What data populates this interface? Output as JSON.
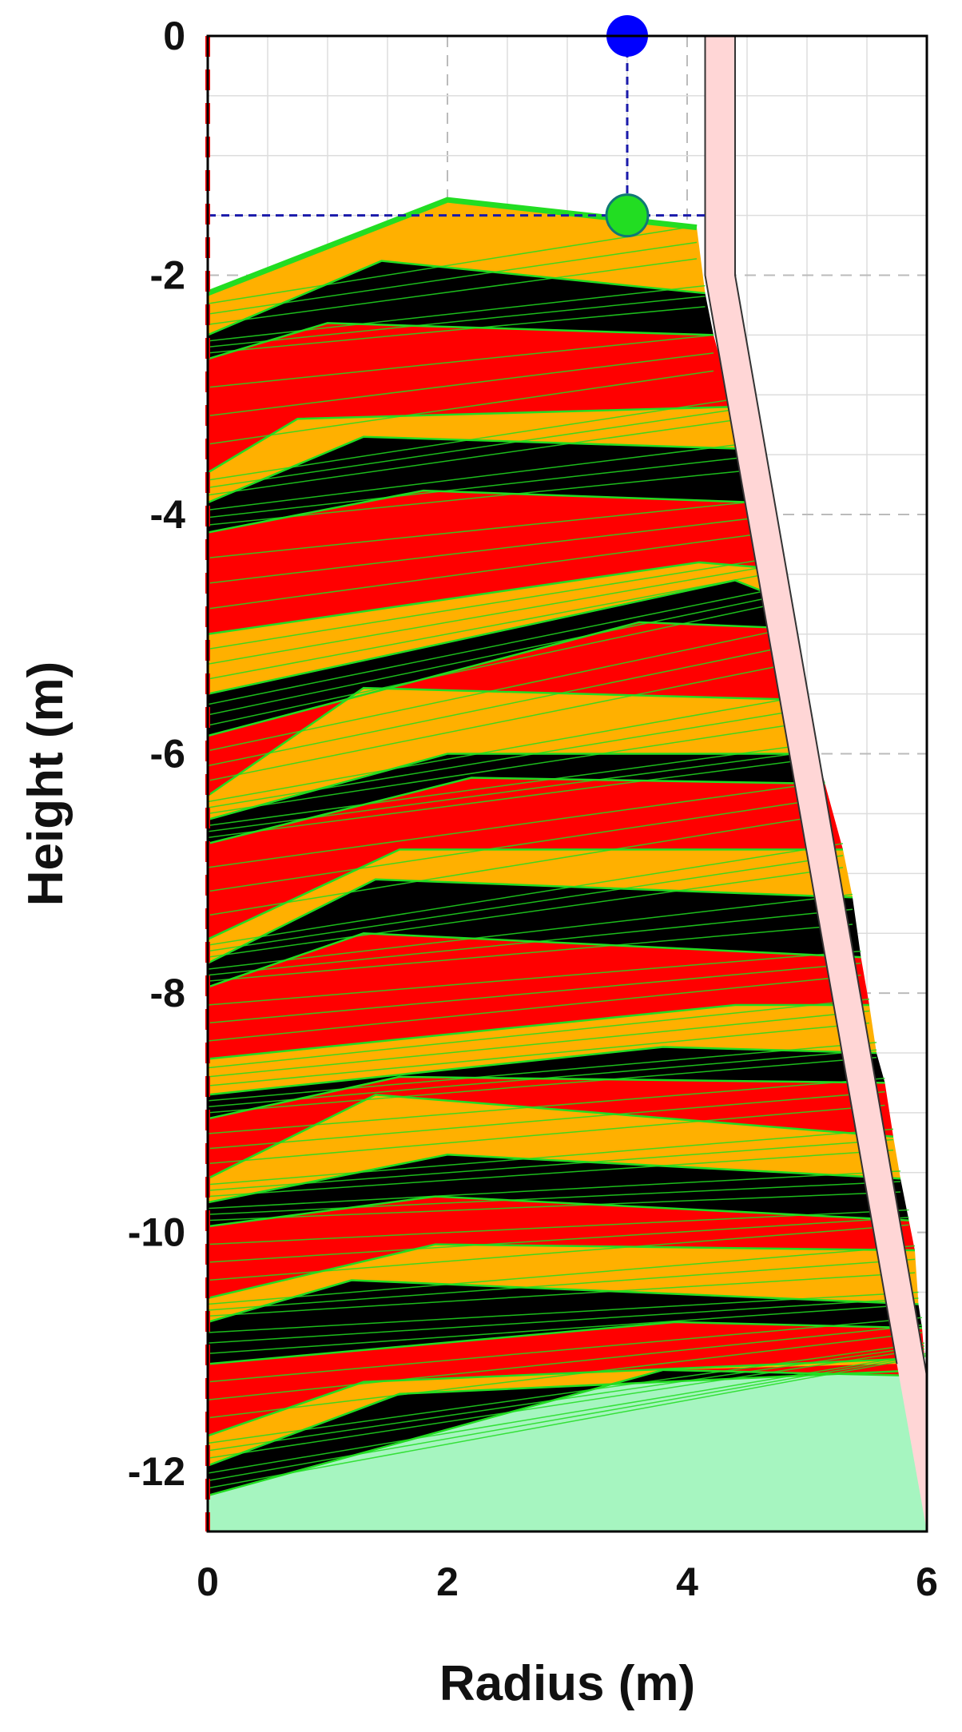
{
  "chart_data": {
    "type": "area",
    "title": "",
    "xlabel": "Radius (m)",
    "ylabel": "Height (m)",
    "xlim": [
      0,
      6
    ],
    "ylim": [
      -12.5,
      0
    ],
    "grid": true,
    "minor_grid": true,
    "x_ticks": [
      0,
      2,
      4,
      6
    ],
    "x_tick_labels": [
      "0",
      "2",
      "4",
      "6"
    ],
    "y_ticks": [
      0,
      -2,
      -4,
      -6,
      -8,
      -10,
      -12
    ],
    "y_tick_labels": [
      "0",
      "-2",
      "-4",
      "-6",
      "-8",
      "-10",
      "-12"
    ],
    "colors": {
      "black_layer": "#000000",
      "red_layer": "#ff0000",
      "orange_layer": "#ffb000",
      "grid_line": "#22dd22",
      "wall": "#ffd6d6",
      "wall_edge": "#333333",
      "bottom_fill": "#a6f5c0",
      "marker_fill": "#0000ff",
      "marker_ring_fill": "#22dd22",
      "guide": "#1a1aaa",
      "centerline": "#ff0000"
    },
    "cycle": [
      "black",
      "red",
      "orange"
    ],
    "layers": [
      {
        "left": -2.15,
        "peak_r": 2.0,
        "peak": -1.37,
        "wallr": 4.08,
        "right": -1.6
      },
      {
        "left": -2.5,
        "peak_r": 1.45,
        "peak": -1.88,
        "wallr": 4.15,
        "right": -2.15
      },
      {
        "left": -2.7,
        "peak_r": 1.0,
        "peak": -2.4,
        "wallr": 4.22,
        "right": -2.5
      },
      {
        "left": -3.65,
        "peak_r": 0.75,
        "peak": -3.2,
        "wallr": 4.38,
        "right": -3.1
      },
      {
        "left": -3.9,
        "peak_r": 1.3,
        "peak": -3.35,
        "wallr": 4.45,
        "right": -3.45
      },
      {
        "left": -4.15,
        "peak_r": 1.8,
        "peak": -3.8,
        "wallr": 4.6,
        "right": -3.9
      },
      {
        "left": -5.0,
        "peak_r": 4.1,
        "peak": -4.4,
        "wallr": 4.72,
        "right": -4.45
      },
      {
        "left": -5.5,
        "peak_r": 4.4,
        "peak": -4.55,
        "wallr": 4.78,
        "right": -4.7
      },
      {
        "left": -5.85,
        "peak_r": 3.6,
        "peak": -4.9,
        "wallr": 4.85,
        "right": -4.95
      },
      {
        "left": -6.35,
        "peak_r": 1.3,
        "peak": -5.45,
        "wallr": 5.0,
        "right": -5.55
      },
      {
        "left": -6.55,
        "peak_r": 2.0,
        "peak": -6.0,
        "wallr": 5.08,
        "right": -6.0
      },
      {
        "left": -6.75,
        "peak_r": 2.2,
        "peak": -6.2,
        "wallr": 5.15,
        "right": -6.25
      },
      {
        "left": -7.55,
        "peak_r": 1.6,
        "peak": -6.8,
        "wallr": 5.3,
        "right": -6.8
      },
      {
        "left": -7.75,
        "peak_r": 1.4,
        "peak": -7.05,
        "wallr": 5.38,
        "right": -7.2
      },
      {
        "left": -7.95,
        "peak_r": 1.3,
        "peak": -7.5,
        "wallr": 5.45,
        "right": -7.7
      },
      {
        "left": -8.55,
        "peak_r": 4.4,
        "peak": -8.1,
        "wallr": 5.52,
        "right": -8.1
      },
      {
        "left": -8.85,
        "peak_r": 3.8,
        "peak": -8.45,
        "wallr": 5.58,
        "right": -8.5
      },
      {
        "left": -9.05,
        "peak_r": 1.6,
        "peak": -8.7,
        "wallr": 5.65,
        "right": -8.75
      },
      {
        "left": -9.55,
        "peak_r": 1.4,
        "peak": -8.85,
        "wallr": 5.72,
        "right": -9.2
      },
      {
        "left": -9.75,
        "peak_r": 2.0,
        "peak": -9.35,
        "wallr": 5.78,
        "right": -9.55
      },
      {
        "left": -9.95,
        "peak_r": 1.9,
        "peak": -9.7,
        "wallr": 5.85,
        "right": -9.9
      },
      {
        "left": -10.55,
        "peak_r": 1.9,
        "peak": -10.1,
        "wallr": 5.9,
        "right": -10.15
      },
      {
        "left": -10.75,
        "peak_r": 1.2,
        "peak": -10.4,
        "wallr": 5.93,
        "right": -10.6
      },
      {
        "left": -11.1,
        "peak_r": 3.9,
        "peak": -10.75,
        "wallr": 5.96,
        "right": -10.8
      },
      {
        "left": -11.7,
        "peak_r": 1.3,
        "peak": -11.25,
        "wallr": 5.98,
        "right": -11.05
      },
      {
        "left": -11.95,
        "peak_r": 1.6,
        "peak": -11.35,
        "wallr": 5.99,
        "right": -11.15
      },
      {
        "left": -12.2,
        "peak_r": 3.8,
        "peak": -11.15,
        "wallr": 6.0,
        "right": -11.2
      }
    ],
    "bottom_region": {
      "boundary_r": [
        0,
        3.8,
        5.7,
        6.0
      ],
      "boundary_z": [
        -12.2,
        -11.15,
        -11.1,
        -11.1
      ]
    },
    "wall": {
      "outer_r": [
        4.4,
        4.4,
        6.0,
        6.0
      ],
      "outer_z": [
        0,
        -2.0,
        -11.2,
        -12.5
      ],
      "inner_r": [
        4.15,
        4.15,
        5.75
      ],
      "inner_z": [
        0,
        -2.0,
        -11.1
      ]
    },
    "markers": [
      {
        "r": 3.5,
        "z": 0.0,
        "style": "filled"
      },
      {
        "r": 3.5,
        "z": -1.5,
        "style": "ring"
      }
    ],
    "guide_lines": {
      "v_r": 3.5,
      "v_from": 0.0,
      "v_to": -1.5,
      "h_z": -1.5,
      "h_from": 0.0,
      "h_to": 4.15
    },
    "centerline_r": 0
  }
}
